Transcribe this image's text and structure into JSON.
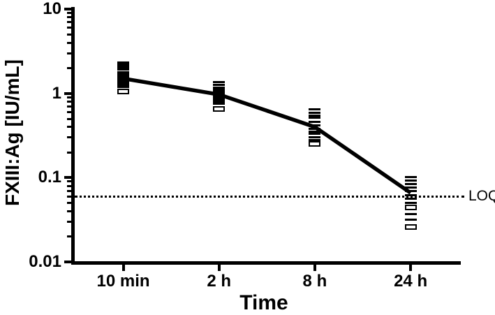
{
  "chart_data": {
    "type": "scatter",
    "title": "",
    "xlabel": "Time",
    "ylabel": "FXIII:Ag [IU/mL]",
    "y_scale": "log",
    "ylim": [
      0.01,
      10
    ],
    "y_major_ticks": [
      10,
      1,
      0.1,
      0.01
    ],
    "y_major_tick_labels": [
      "10",
      "1",
      "0.1",
      "0.01"
    ],
    "categories": [
      "10 min",
      "2 h",
      "8 h",
      "24 h"
    ],
    "grid": false,
    "legend": false,
    "series": [
      {
        "name": "individual-values",
        "type": "scatter",
        "marker": "horizontal-dash",
        "groups": [
          {
            "category": "10 min",
            "solid": [
              2.32,
              2.22,
              2.11,
              2.01,
              1.92,
              1.78,
              1.7,
              1.62,
              1.54,
              1.47,
              1.4,
              1.31,
              1.25,
              1.19
            ],
            "open": [
              1.06
            ]
          },
          {
            "category": "2 h",
            "solid": [
              1.37,
              1.27,
              1.18,
              1.11,
              1.06,
              1.01,
              0.97,
              0.92,
              0.88,
              0.84,
              0.8,
              0.76
            ],
            "open": [
              0.65
            ]
          },
          {
            "category": "8 h",
            "solid": [
              0.65,
              0.59,
              0.55,
              0.51,
              0.46,
              0.42,
              0.38,
              0.35,
              0.33,
              0.3,
              0.28
            ],
            "open": [
              0.25
            ]
          },
          {
            "category": "24 h",
            "solid": [
              0.101,
              0.093,
              0.084,
              0.076,
              0.069,
              0.062,
              0.056,
              0.05,
              0.037,
              0.032
            ],
            "open": [
              0.044,
              0.026
            ]
          }
        ]
      },
      {
        "name": "mean",
        "type": "line",
        "values": [
          1.5,
          0.97,
          0.4,
          0.066
        ]
      }
    ],
    "annotations": [
      {
        "type": "hline",
        "style": "dotted",
        "y": 0.06,
        "label": "LOQ"
      }
    ]
  },
  "colors": {
    "foreground": "#000000",
    "background": "#ffffff"
  }
}
